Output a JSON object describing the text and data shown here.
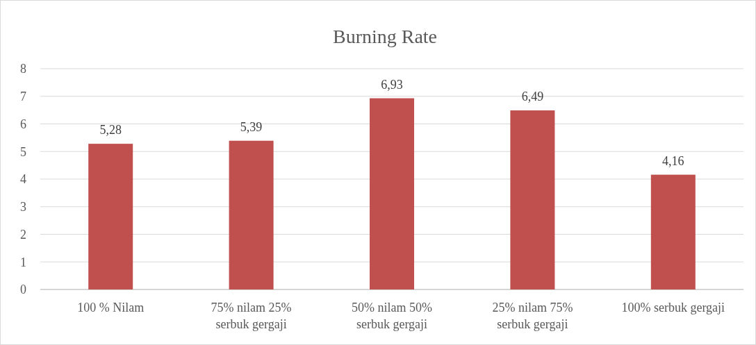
{
  "chart_data": {
    "type": "bar",
    "title": "Burning Rate",
    "categories": [
      "100 % Nilam",
      "75% nilam 25% serbuk gergaji",
      "50% nilam 50% serbuk gergaji",
      "25% nilam 75% serbuk gergaji",
      "100% serbuk gergaji"
    ],
    "values": [
      5.28,
      5.39,
      6.93,
      6.49,
      4.16
    ],
    "value_labels": [
      "5,28",
      "5,39",
      "6,93",
      "6,49",
      "4,16"
    ],
    "color": "#c0504d",
    "ylim": [
      0,
      8
    ],
    "yticks": [
      0,
      1,
      2,
      3,
      4,
      5,
      6,
      7,
      8
    ],
    "grid": "y"
  }
}
